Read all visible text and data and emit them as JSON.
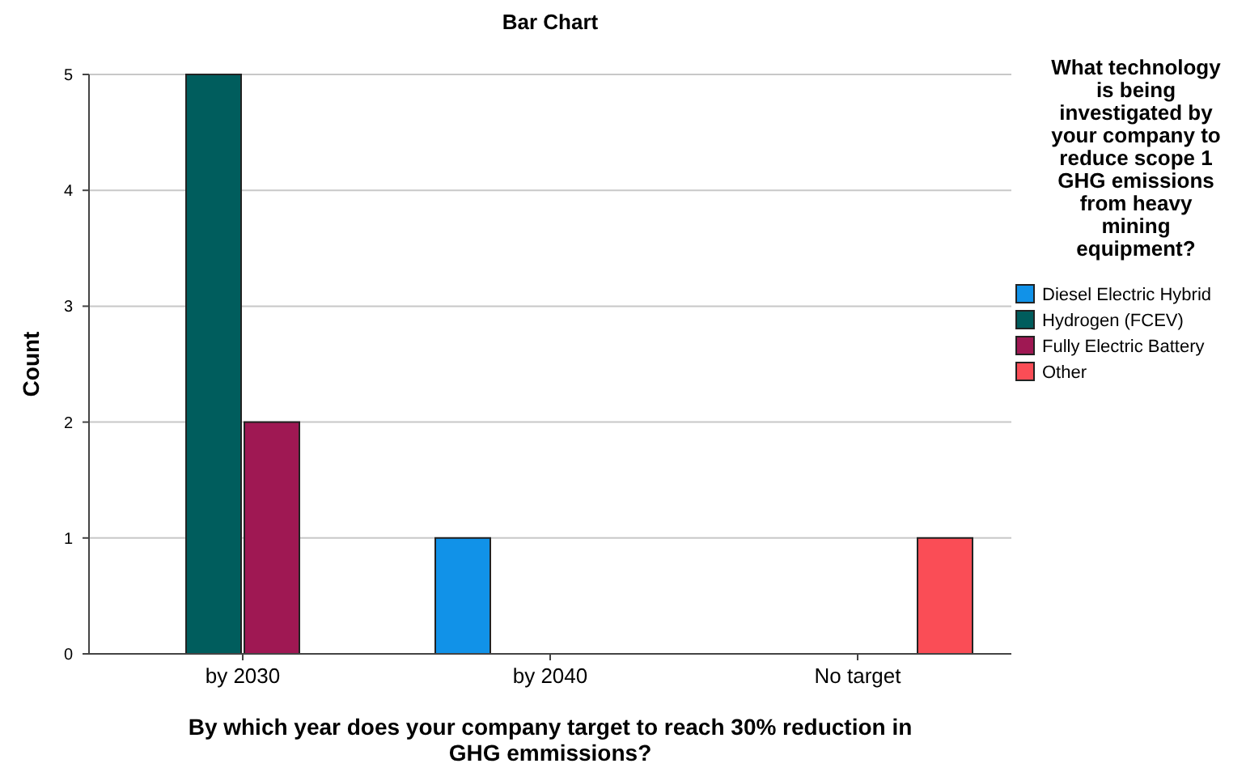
{
  "chart_data": {
    "type": "bar",
    "title": "Bar Chart",
    "xlabel": "By which year does your company target to reach 30% reduction in GHG emmissions?",
    "ylabel": "Count",
    "legend_title": "What technology is being investigated by your company to reduce scope 1 GHG emissions from heavy mining equipment?",
    "categories": [
      "by 2030",
      "by 2040",
      "No target"
    ],
    "series": [
      {
        "name": "Diesel Electric Hybrid",
        "color": "#1192e8",
        "values": [
          0,
          1,
          0
        ]
      },
      {
        "name": "Hydrogen (FCEV)",
        "color": "#005d5d",
        "values": [
          5,
          0,
          0
        ]
      },
      {
        "name": "Fully Electric Battery",
        "color": "#9f1853",
        "values": [
          2,
          0,
          0
        ]
      },
      {
        "name": "Other",
        "color": "#fa4d56",
        "values": [
          0,
          0,
          1
        ]
      }
    ],
    "ylim": [
      0,
      5
    ],
    "yticks": [
      0,
      1,
      2,
      3,
      4,
      5
    ],
    "grid": "y",
    "legend": "right"
  }
}
